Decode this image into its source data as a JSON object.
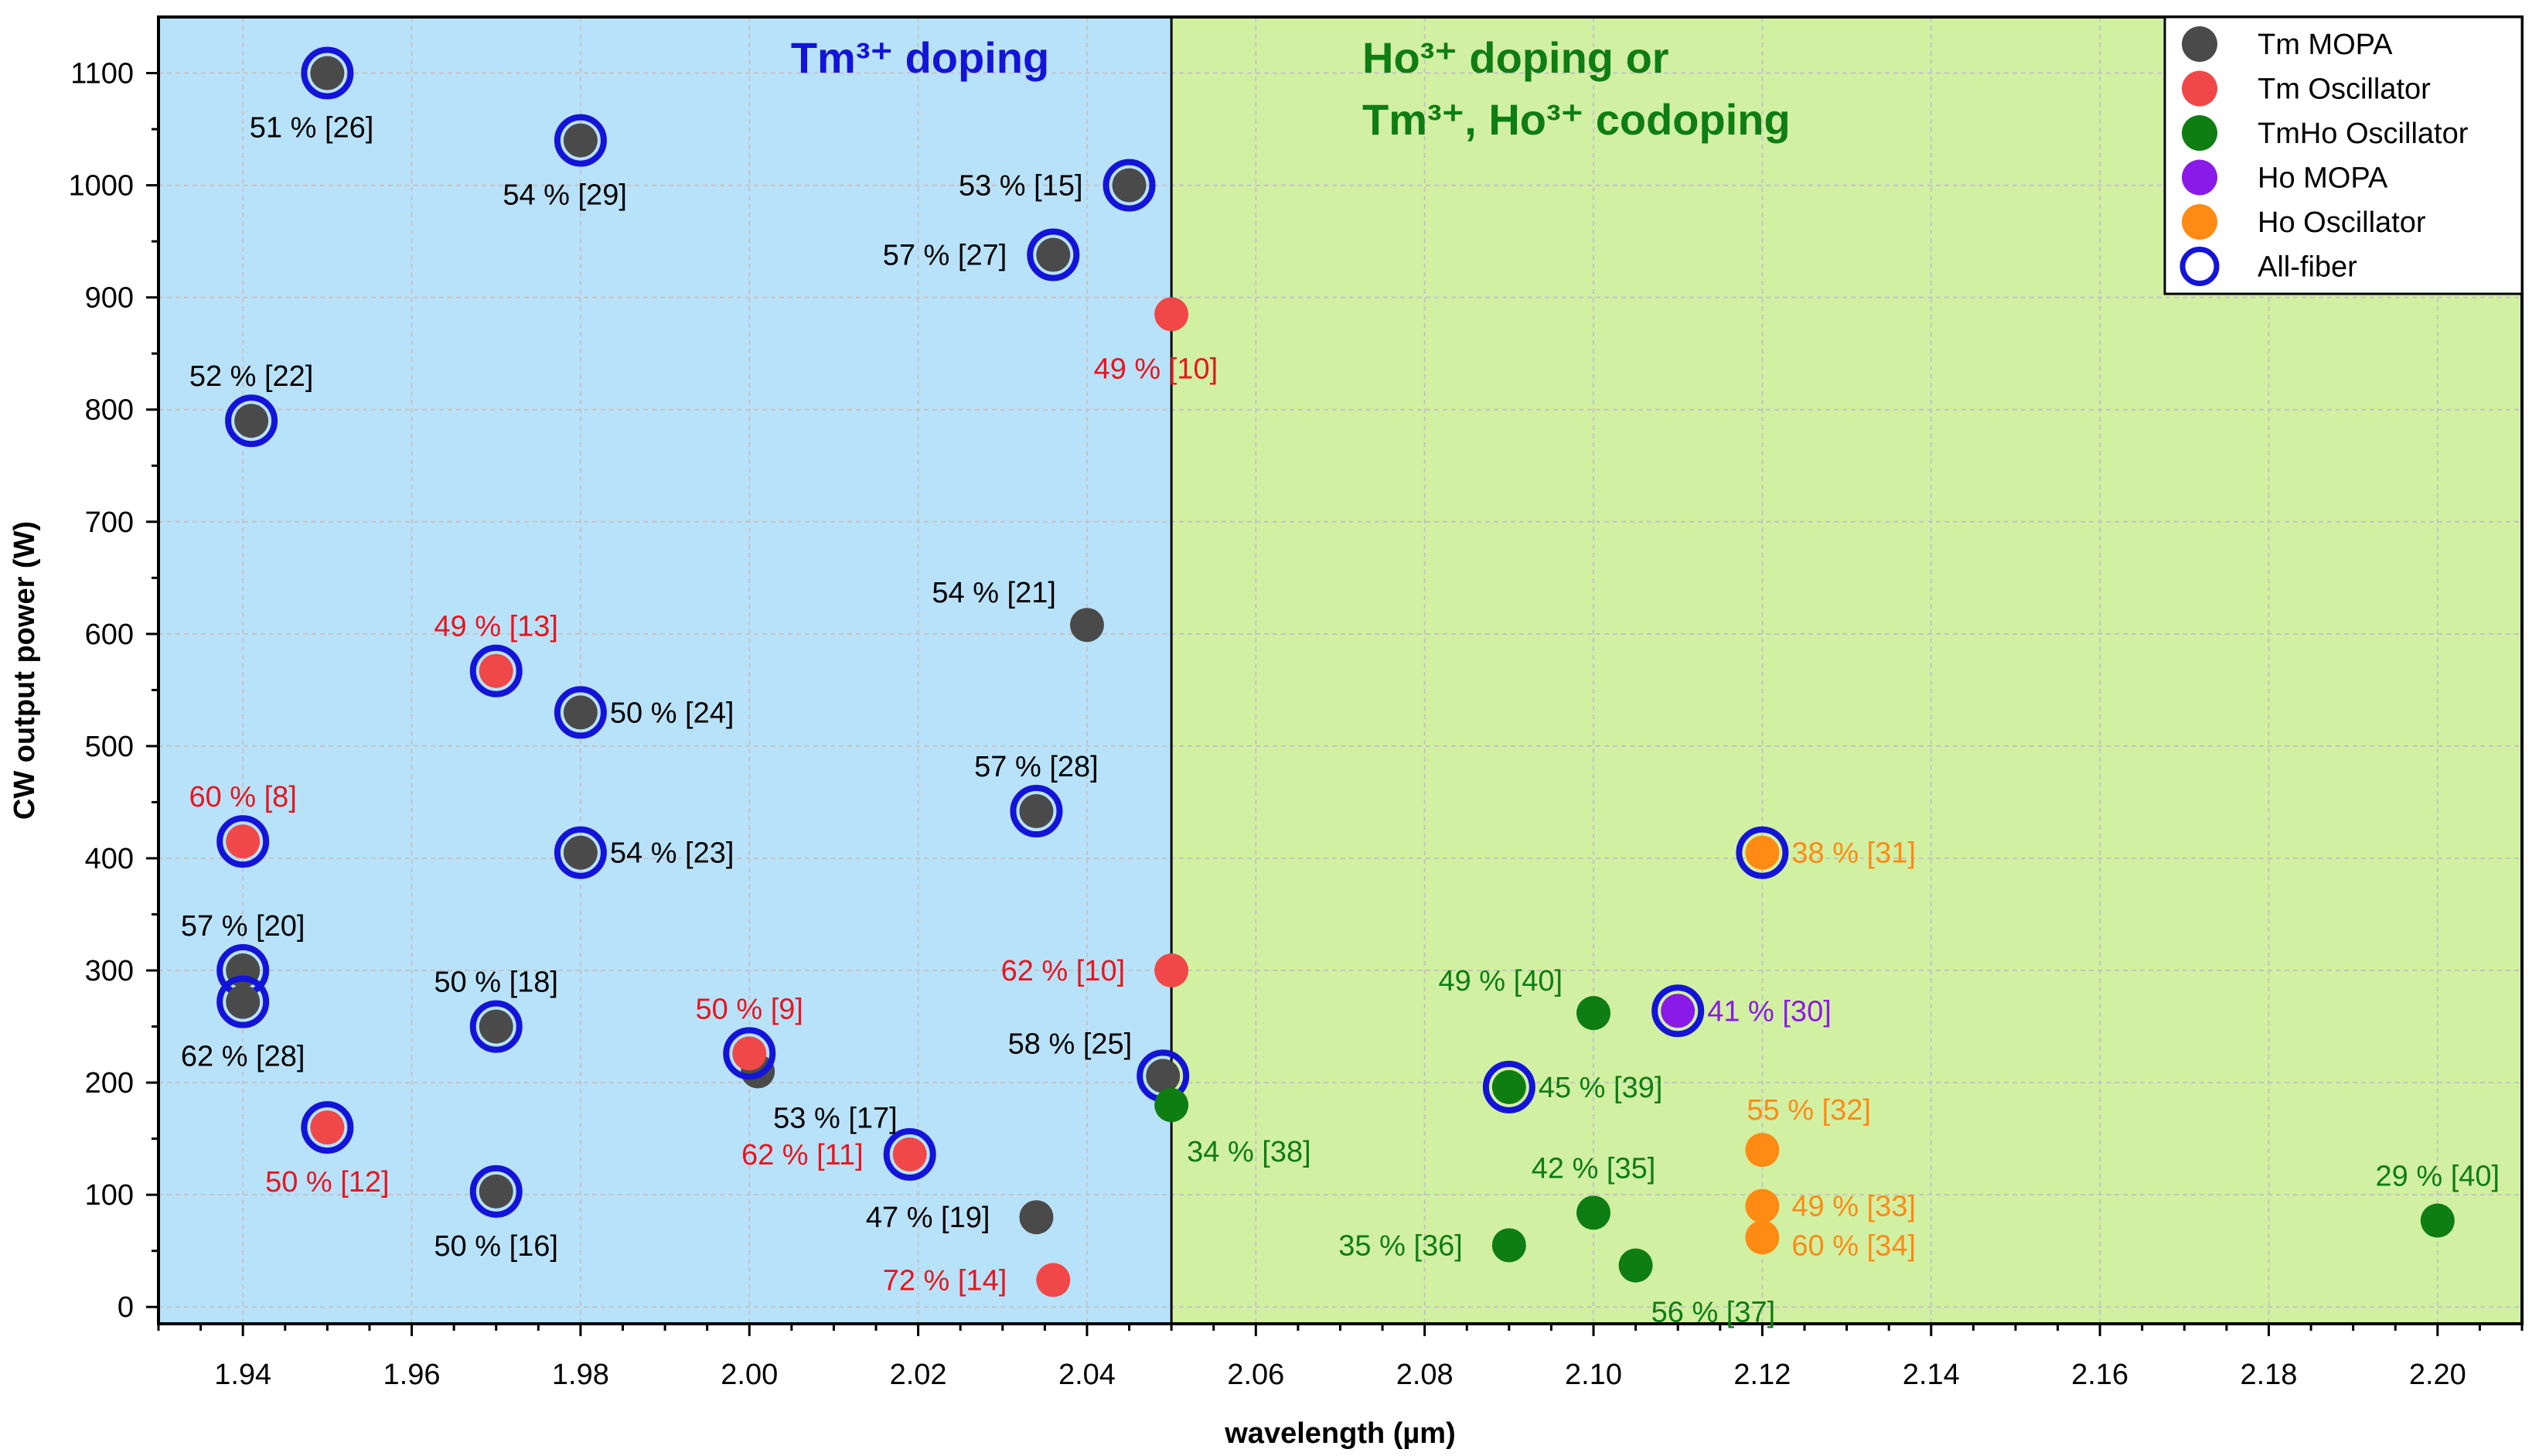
{
  "chart_data": {
    "type": "scatter",
    "xlabel": "wavelength (µm)",
    "ylabel": "CW output power (W)",
    "xlim": [
      1.93,
      2.21
    ],
    "ylim": [
      -15,
      1150
    ],
    "x_ticks": [
      "1.94",
      "1.96",
      "1.98",
      "2.00",
      "2.02",
      "2.04",
      "2.06",
      "2.08",
      "2.10",
      "2.12",
      "2.14",
      "2.16",
      "2.18",
      "2.20"
    ],
    "y_ticks": [
      "0",
      "100",
      "200",
      "300",
      "400",
      "500",
      "600",
      "700",
      "800",
      "900",
      "1000",
      "1100"
    ],
    "divider_x": 2.05,
    "regions": {
      "left": {
        "label": "Tm³⁺ doping",
        "color": "#b8e2fa"
      },
      "right": {
        "line1": "Ho³⁺ doping or",
        "line2": "Tm³⁺, Ho³⁺ codoping",
        "color": "#d2f0a2"
      }
    },
    "series": [
      {
        "key": "tm_mopa",
        "name": "Tm MOPA",
        "color": "#4a4a4a",
        "label_color": "#000000"
      },
      {
        "key": "tm_osc",
        "name": "Tm Oscillator",
        "color": "#f04848",
        "label_color": "#e8141e"
      },
      {
        "key": "tmho_osc",
        "name": "TmHo Oscillator",
        "color": "#0e7d12",
        "label_color": "#0e7d12"
      },
      {
        "key": "ho_mopa",
        "name": "Ho MOPA",
        "color": "#8a1ae8",
        "label_color": "#8a1ae8"
      },
      {
        "key": "ho_osc",
        "name": "Ho Oscillator",
        "color": "#ff8a14",
        "label_color": "#ff8a14"
      },
      {
        "key": "all_fiber",
        "name": "All-fiber",
        "color": "#1414d8",
        "label_color": "#000000"
      }
    ],
    "points": [
      {
        "s": "tm_mopa",
        "x": 1.95,
        "y": 1100,
        "label": "51 % [26]",
        "fiber": true,
        "anchor": "bl"
      },
      {
        "s": "tm_mopa",
        "x": 1.98,
        "y": 1040,
        "label": "54 % [29]",
        "fiber": true,
        "anchor": "bl"
      },
      {
        "s": "tm_mopa",
        "x": 2.045,
        "y": 1000,
        "label": "53 % [15]",
        "fiber": true,
        "anchor": "l"
      },
      {
        "s": "tm_mopa",
        "x": 2.036,
        "y": 938,
        "label": "57 % [27]",
        "fiber": true,
        "anchor": "l"
      },
      {
        "s": "tm_mopa",
        "x": 1.941,
        "y": 790,
        "label": "52 % [22]",
        "fiber": true,
        "anchor": "t"
      },
      {
        "s": "tm_mopa",
        "x": 2.04,
        "y": 608,
        "label": "54 % [21]",
        "fiber": false,
        "anchor": "tl"
      },
      {
        "s": "tm_mopa",
        "x": 1.98,
        "y": 530,
        "label": "50 % [24]",
        "fiber": true,
        "anchor": "r"
      },
      {
        "s": "tm_mopa",
        "x": 2.034,
        "y": 442,
        "label": "57 % [28]",
        "fiber": true,
        "anchor": "t"
      },
      {
        "s": "tm_mopa",
        "x": 1.98,
        "y": 405,
        "label": "54 % [23]",
        "fiber": true,
        "anchor": "r"
      },
      {
        "s": "tm_mopa",
        "x": 1.94,
        "y": 300,
        "label": "57 % [20]",
        "fiber": true,
        "anchor": "t"
      },
      {
        "s": "tm_mopa",
        "x": 1.94,
        "y": 272,
        "label": "62 % [28]",
        "fiber": true,
        "anchor": "b"
      },
      {
        "s": "tm_mopa",
        "x": 1.97,
        "y": 250,
        "label": "50 % [18]",
        "fiber": true,
        "anchor": "t"
      },
      {
        "s": "tm_mopa",
        "x": 2.001,
        "y": 210,
        "label": "53 % [17]",
        "fiber": false,
        "anchor": "br"
      },
      {
        "s": "tm_mopa",
        "x": 2.049,
        "y": 206,
        "label": "58 % [25]",
        "fiber": true,
        "anchor": "tl"
      },
      {
        "s": "tm_mopa",
        "x": 1.97,
        "y": 103,
        "label": "50 % [16]",
        "fiber": true,
        "anchor": "b"
      },
      {
        "s": "tm_mopa",
        "x": 2.034,
        "y": 80,
        "label": "47 % [19]",
        "fiber": false,
        "anchor": "l"
      },
      {
        "s": "tm_osc",
        "x": 2.05,
        "y": 885,
        "label": "49 % [10]",
        "fiber": false,
        "anchor": "bl"
      },
      {
        "s": "tm_osc",
        "x": 1.97,
        "y": 567,
        "label": "49 % [13]",
        "fiber": true,
        "anchor": "t"
      },
      {
        "s": "tm_osc",
        "x": 1.94,
        "y": 415,
        "label": "60 % [8]",
        "fiber": true,
        "anchor": "t"
      },
      {
        "s": "tm_osc",
        "x": 2.05,
        "y": 300,
        "label": "62 % [10]",
        "fiber": false,
        "anchor": "l"
      },
      {
        "s": "tm_osc",
        "x": 2.0,
        "y": 226,
        "label": "50 % [9]",
        "fiber": true,
        "anchor": "t"
      },
      {
        "s": "tm_osc",
        "x": 1.95,
        "y": 160,
        "label": "50 % [12]",
        "fiber": true,
        "anchor": "b"
      },
      {
        "s": "tm_osc",
        "x": 2.019,
        "y": 136,
        "label": "62 % [11]",
        "fiber": true,
        "anchor": "l"
      },
      {
        "s": "tm_osc",
        "x": 2.036,
        "y": 24,
        "label": "72 % [14]",
        "fiber": false,
        "anchor": "l"
      },
      {
        "s": "tmho_osc",
        "x": 2.05,
        "y": 180,
        "label": "34 % [38]",
        "fiber": false,
        "anchor": "br"
      },
      {
        "s": "tmho_osc",
        "x": 2.1,
        "y": 262,
        "label": "49 % [40]",
        "fiber": false,
        "anchor": "tl"
      },
      {
        "s": "tmho_osc",
        "x": 2.09,
        "y": 196,
        "label": "45 % [39]",
        "fiber": true,
        "anchor": "r"
      },
      {
        "s": "tmho_osc",
        "x": 2.1,
        "y": 84,
        "label": "42 % [35]",
        "fiber": false,
        "anchor": "t"
      },
      {
        "s": "tmho_osc",
        "x": 2.09,
        "y": 55,
        "label": "35 % [36]",
        "fiber": false,
        "anchor": "l"
      },
      {
        "s": "tmho_osc",
        "x": 2.105,
        "y": 37,
        "label": "56 % [37]",
        "fiber": false,
        "anchor": "br"
      },
      {
        "s": "tmho_osc",
        "x": 2.2,
        "y": 77,
        "label": "29 % [40]",
        "fiber": false,
        "anchor": "t"
      },
      {
        "s": "ho_mopa",
        "x": 2.11,
        "y": 264,
        "label": "41 % [30]",
        "fiber": true,
        "anchor": "r"
      },
      {
        "s": "ho_osc",
        "x": 2.12,
        "y": 405,
        "label": "38 % [31]",
        "fiber": true,
        "anchor": "r"
      },
      {
        "s": "ho_osc",
        "x": 2.12,
        "y": 140,
        "label": "55 % [32]",
        "fiber": false,
        "anchor": "tr"
      },
      {
        "s": "ho_osc",
        "x": 2.12,
        "y": 90,
        "label": "49 % [33]",
        "fiber": false,
        "anchor": "r"
      },
      {
        "s": "ho_osc",
        "x": 2.12,
        "y": 62,
        "label": "60 % [34]",
        "fiber": false,
        "anchor": "r2"
      }
    ]
  }
}
